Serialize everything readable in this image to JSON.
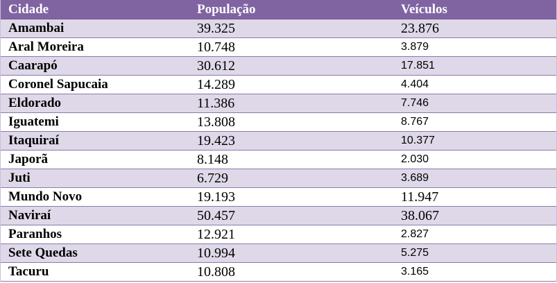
{
  "table": {
    "headers": [
      "Cidade",
      "População",
      "Veículos"
    ],
    "rows": [
      {
        "cidade": "Amambai",
        "populacao": "39.325",
        "veiculos": "23.876"
      },
      {
        "cidade": "Aral Moreira",
        "populacao": "10.748",
        "veiculos": "3.879"
      },
      {
        "cidade": "Caarapó",
        "populacao": "30.612",
        "veiculos": "17.851"
      },
      {
        "cidade": "Coronel Sapucaia",
        "populacao": "14.289",
        "veiculos": "4.404"
      },
      {
        "cidade": "Eldorado",
        "populacao": "11.386",
        "veiculos": "7.746"
      },
      {
        "cidade": "Iguatemi",
        "populacao": "13.808",
        "veiculos": "8.767"
      },
      {
        "cidade": "Itaquiraí",
        "populacao": "19.423",
        "veiculos": "10.377"
      },
      {
        "cidade": "Japorã",
        "populacao": "8.148",
        "veiculos": "2.030"
      },
      {
        "cidade": "Juti",
        "populacao": "6.729",
        "veiculos": "3.689"
      },
      {
        "cidade": "Mundo Novo",
        "populacao": "19.193",
        "veiculos": "11.947"
      },
      {
        "cidade": "Naviraí",
        "populacao": "50.457",
        "veiculos": "38.067"
      },
      {
        "cidade": "Paranhos",
        "populacao": "12.921",
        "veiculos": "2.827"
      },
      {
        "cidade": "Sete Quedas",
        "populacao": "10.994",
        "veiculos": "5.275"
      },
      {
        "cidade": "Tacuru",
        "populacao": "10.808",
        "veiculos": "3.165"
      }
    ]
  },
  "colors": {
    "header_bg": "#8064a2",
    "band_bg": "#dfd8e8",
    "row_bg": "#ffffff",
    "header_text": "#ffffff"
  }
}
